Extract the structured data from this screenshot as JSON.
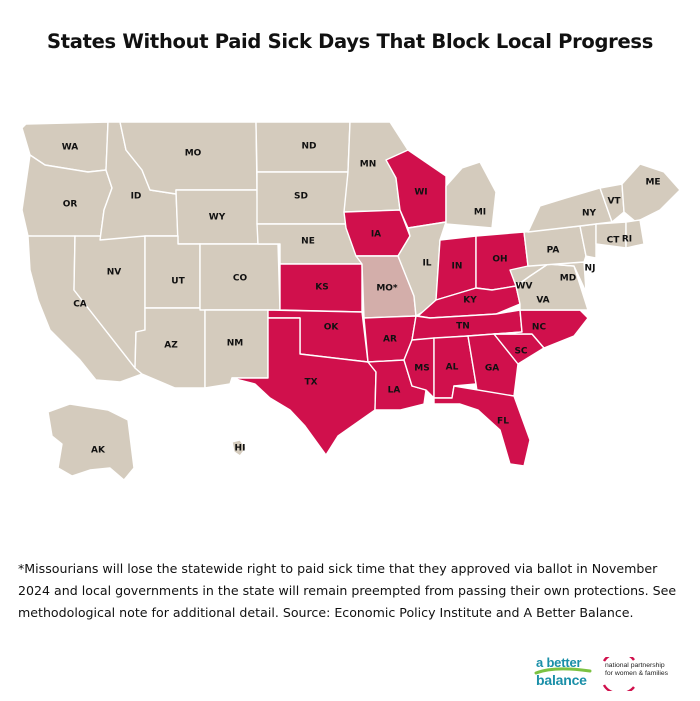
{
  "title": "States Without Paid Sick Days That Block Local Progress",
  "colors": {
    "preempted": "#d0104c",
    "missouri": "#d3aeaa",
    "other": "#d4cbbd",
    "border": "#ffffff"
  },
  "states": [
    {
      "abbr": "WA",
      "status": "other"
    },
    {
      "abbr": "OR",
      "status": "other"
    },
    {
      "abbr": "CA",
      "status": "other"
    },
    {
      "abbr": "NV",
      "status": "other"
    },
    {
      "abbr": "ID",
      "status": "other"
    },
    {
      "abbr": "MO",
      "status": "other"
    },
    {
      "abbr": "WY",
      "status": "other"
    },
    {
      "abbr": "UT",
      "status": "other"
    },
    {
      "abbr": "AZ",
      "status": "other"
    },
    {
      "abbr": "CO",
      "status": "other"
    },
    {
      "abbr": "NM",
      "status": "other"
    },
    {
      "abbr": "ND",
      "status": "other"
    },
    {
      "abbr": "SD",
      "status": "other"
    },
    {
      "abbr": "NE",
      "status": "other"
    },
    {
      "abbr": "KS",
      "status": "preempted"
    },
    {
      "abbr": "OK",
      "status": "preempted"
    },
    {
      "abbr": "TX",
      "status": "preempted"
    },
    {
      "abbr": "MN",
      "status": "other"
    },
    {
      "abbr": "IA",
      "status": "preempted"
    },
    {
      "abbr": "MO*",
      "status": "missouri"
    },
    {
      "abbr": "AR",
      "status": "preempted"
    },
    {
      "abbr": "LA",
      "status": "preempted"
    },
    {
      "abbr": "WI",
      "status": "preempted"
    },
    {
      "abbr": "IL",
      "status": "other"
    },
    {
      "abbr": "MI",
      "status": "other"
    },
    {
      "abbr": "IN",
      "status": "preempted"
    },
    {
      "abbr": "OH",
      "status": "preempted"
    },
    {
      "abbr": "KY",
      "status": "preempted"
    },
    {
      "abbr": "TN",
      "status": "preempted"
    },
    {
      "abbr": "MS",
      "status": "preempted"
    },
    {
      "abbr": "AL",
      "status": "preempted"
    },
    {
      "abbr": "GA",
      "status": "preempted"
    },
    {
      "abbr": "FL",
      "status": "preempted"
    },
    {
      "abbr": "SC",
      "status": "preempted"
    },
    {
      "abbr": "NC",
      "status": "preempted"
    },
    {
      "abbr": "VA",
      "status": "other"
    },
    {
      "abbr": "WV",
      "status": "other"
    },
    {
      "abbr": "MD",
      "status": "other"
    },
    {
      "abbr": "PA",
      "status": "other"
    },
    {
      "abbr": "NJ",
      "status": "other"
    },
    {
      "abbr": "NY",
      "status": "other"
    },
    {
      "abbr": "VT",
      "status": "other"
    },
    {
      "abbr": "ME",
      "status": "other"
    },
    {
      "abbr": "CT",
      "status": "other"
    },
    {
      "abbr": "RI",
      "status": "other"
    },
    {
      "abbr": "AK",
      "status": "other"
    },
    {
      "abbr": "HI",
      "status": "other"
    }
  ],
  "footnote": "*Missourians will lose the statewide right to paid sick time that they approved via ballot in November 2024 and local governments in the state will remain preempted from passing their own protections. See methodological note for additional detail. Source: Economic Policy Institute and A Better Balance.",
  "logos": {
    "abb_line1": "a better",
    "abb_line2": "balance",
    "np_line1": "national partnership",
    "np_line2": "for women & families"
  }
}
